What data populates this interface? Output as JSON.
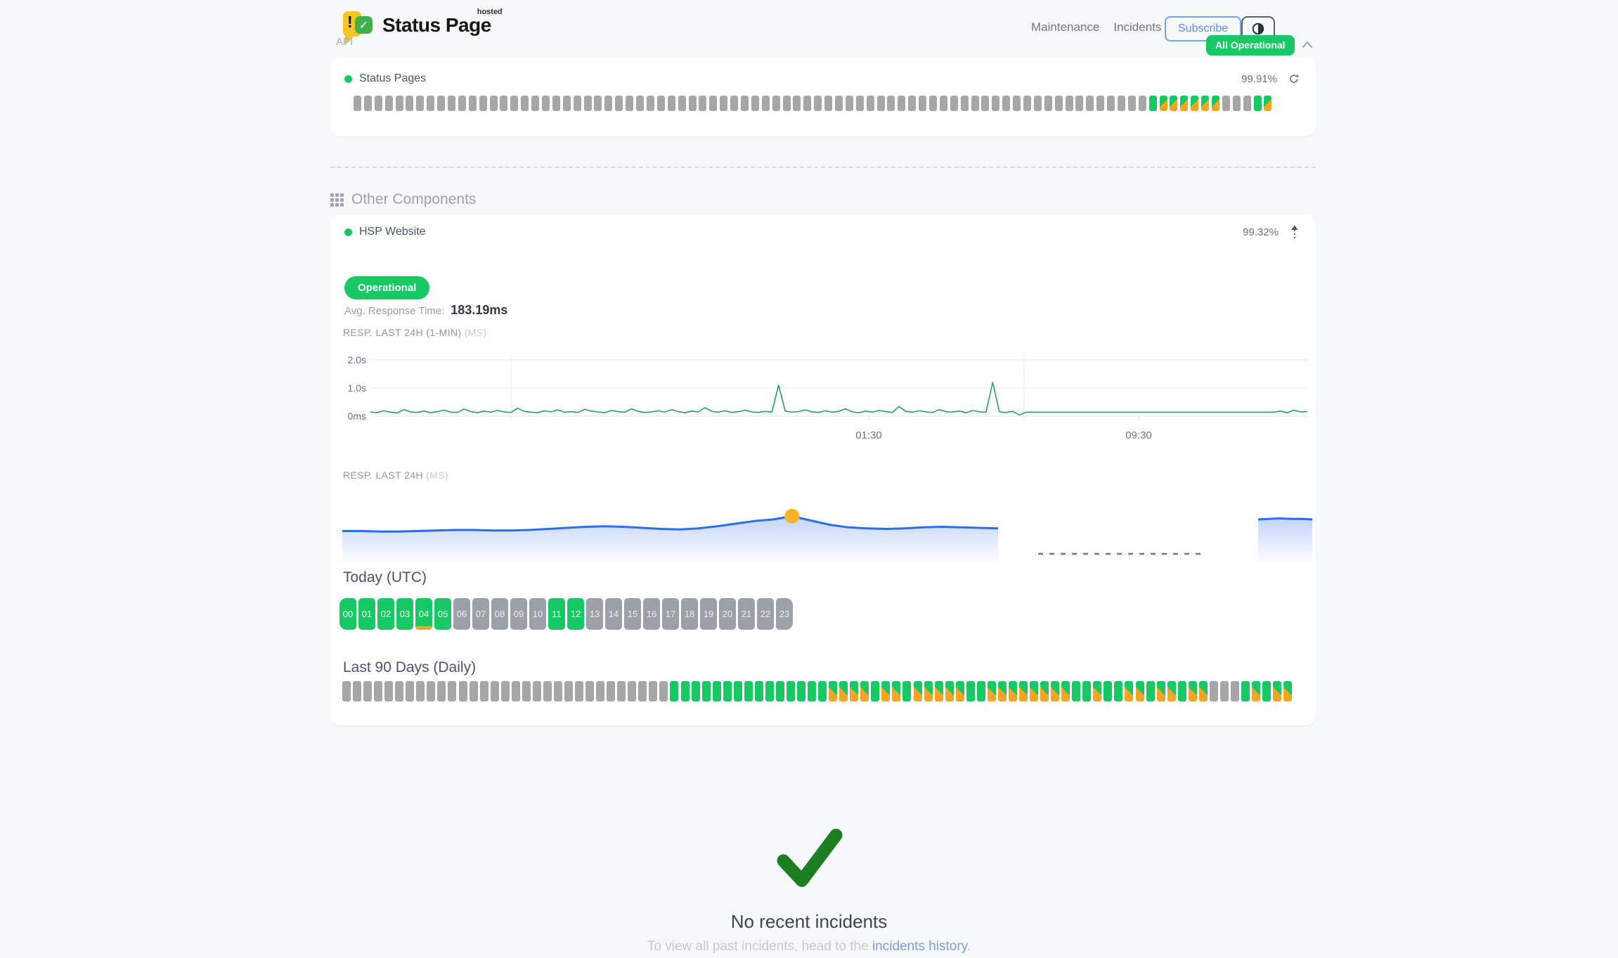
{
  "header": {
    "brand": "Status Page",
    "brand_sup": "hosted",
    "nav": [
      {
        "label": "Maintenance"
      },
      {
        "label": "Incidents"
      }
    ],
    "subscribe_label": "Subscribe",
    "overall_status": "All Operational"
  },
  "api_section": {
    "title": "API",
    "component": {
      "name": "Status Pages",
      "uptime": "99.91%"
    },
    "uptime_strip": {
      "segments": [
        [
          "gray",
          76
        ],
        [
          "green",
          1
        ],
        [
          "mix",
          6
        ],
        [
          "gray",
          3
        ],
        [
          "green",
          1
        ],
        [
          "mix",
          1
        ]
      ]
    }
  },
  "other_section": {
    "title": "Other Components",
    "component": {
      "name": "HSP Website",
      "uptime": "99.32%",
      "status_badge": "Operational",
      "avg_label": "Avg. Response Time:",
      "avg_value": "183.19ms"
    },
    "chart_minute": {
      "type": "line",
      "label": "RESP. LAST 24H (1-MIN)",
      "unit": "(MS)",
      "yticks": [
        "2.0s",
        "1.0s",
        "0ms"
      ],
      "xticks": [
        "01:30",
        "09:30"
      ],
      "values_ms": [
        150,
        120,
        190,
        140,
        110,
        230,
        150,
        130,
        180,
        120,
        160,
        210,
        140,
        130,
        250,
        160,
        120,
        180,
        140,
        200,
        150,
        130,
        280,
        170,
        140,
        120,
        190,
        150,
        220,
        140,
        160,
        130,
        240,
        180,
        150,
        120,
        200,
        160,
        140,
        260,
        170,
        130,
        150,
        190,
        140,
        230,
        160,
        120,
        180,
        150,
        300,
        170,
        140,
        190,
        130,
        160,
        210,
        150,
        130,
        170,
        140,
        1100,
        180,
        140,
        160,
        220,
        150,
        130,
        190,
        140,
        170,
        260,
        150,
        120,
        180,
        140,
        200,
        160,
        130,
        340,
        170,
        140,
        190,
        150,
        130,
        230,
        160,
        140,
        180,
        120,
        200,
        150,
        140,
        1200,
        150,
        130,
        170,
        40,
        140,
        140,
        140,
        140,
        140,
        140,
        140,
        140,
        140,
        140,
        140,
        140,
        140,
        140,
        140,
        140,
        140,
        140,
        140,
        140,
        140,
        140,
        140,
        140,
        140,
        140,
        140,
        140,
        140,
        140,
        140,
        140,
        140,
        140,
        140,
        140,
        140,
        140,
        180,
        120,
        210,
        150,
        160
      ]
    },
    "chart_day": {
      "type": "area",
      "label": "RESP. LAST 24H",
      "unit": "(MS)",
      "segment1_ms": [
        150,
        150,
        149,
        149,
        150,
        151,
        152,
        152,
        151,
        151,
        152,
        154,
        156,
        158,
        159,
        158,
        156,
        154,
        153,
        155,
        159,
        164,
        169,
        172,
        178,
        170,
        162,
        157,
        155,
        154,
        155,
        157,
        158,
        157,
        156,
        155
      ],
      "segment2_ms": [
        172,
        173,
        174,
        173,
        173,
        172
      ],
      "gap_dashed": true,
      "marker_index": 24
    },
    "today": {
      "heading": "Today (UTC)",
      "hours": [
        {
          "label": "00",
          "state": "green"
        },
        {
          "label": "01",
          "state": "green"
        },
        {
          "label": "02",
          "state": "green"
        },
        {
          "label": "03",
          "state": "green"
        },
        {
          "label": "04",
          "state": "green",
          "marker": "orange"
        },
        {
          "label": "05",
          "state": "green"
        },
        {
          "label": "06",
          "state": "gray"
        },
        {
          "label": "07",
          "state": "gray"
        },
        {
          "label": "08",
          "state": "gray"
        },
        {
          "label": "09",
          "state": "gray"
        },
        {
          "label": "10",
          "state": "gray"
        },
        {
          "label": "11",
          "state": "green"
        },
        {
          "label": "12",
          "state": "green"
        },
        {
          "label": "13",
          "state": "gray"
        },
        {
          "label": "14",
          "state": "gray"
        },
        {
          "label": "15",
          "state": "gray"
        },
        {
          "label": "16",
          "state": "gray"
        },
        {
          "label": "17",
          "state": "gray"
        },
        {
          "label": "18",
          "state": "gray"
        },
        {
          "label": "19",
          "state": "gray"
        },
        {
          "label": "20",
          "state": "gray"
        },
        {
          "label": "21",
          "state": "gray"
        },
        {
          "label": "22",
          "state": "gray"
        },
        {
          "label": "23",
          "state": "gray"
        }
      ]
    },
    "daily": {
      "heading": "Last 90 Days (Daily)",
      "segments": [
        [
          "gray",
          31
        ],
        [
          "green",
          15
        ],
        [
          "mix",
          4
        ],
        [
          "green",
          1
        ],
        [
          "mix",
          2
        ],
        [
          "green",
          1
        ],
        [
          "mix",
          5
        ],
        [
          "green",
          2
        ],
        [
          "mix",
          8
        ],
        [
          "green",
          2
        ],
        [
          "mix",
          1
        ],
        [
          "green",
          2
        ],
        [
          "mix",
          2
        ],
        [
          "green",
          1
        ],
        [
          "mix",
          2
        ],
        [
          "green",
          1
        ],
        [
          "mix",
          2
        ],
        [
          "gray",
          3
        ],
        [
          "green",
          1
        ],
        [
          "mix",
          1
        ],
        [
          "green",
          1
        ],
        [
          "mix",
          2
        ]
      ]
    }
  },
  "incidents": {
    "title": "No recent incidents",
    "subtitle_prefix": "To view all past incidents, head to the ",
    "link_text": "incidents history",
    "subtitle_suffix": "."
  },
  "colors": {
    "green": "#17c964",
    "orange": "#f5a524",
    "bar_gray": "#a6a6a6",
    "chart_green": "#2e9e5b",
    "blue_line": "#2b6cf0",
    "marker_yellow": "#f7b42c",
    "link_blue": "#7c9bf5",
    "check_green": "#1d7d21"
  }
}
